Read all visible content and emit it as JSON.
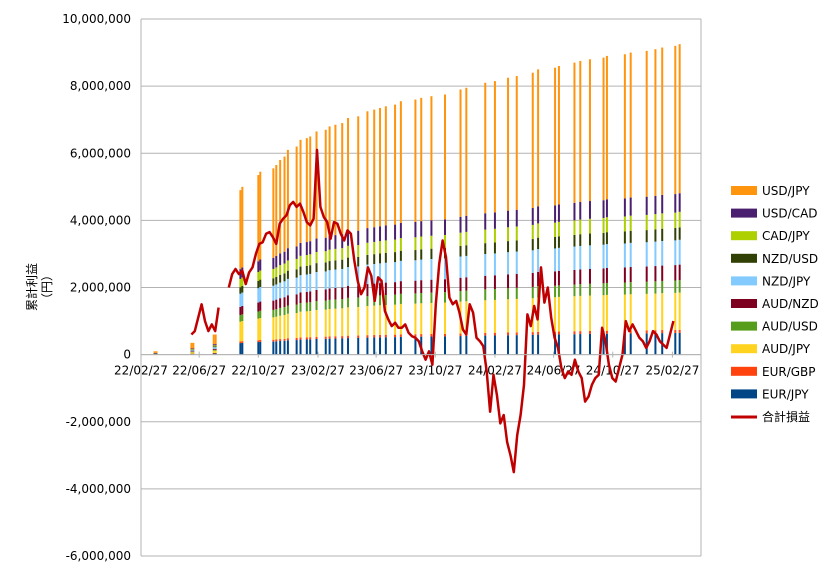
{
  "chart_data": {
    "type": "bar",
    "ylabel": "累計利益\n（円）",
    "ylim": [
      -6000000,
      10000000
    ],
    "y_ticks": [
      "10,000,000",
      "8,000,000",
      "6,000,000",
      "4,000,000",
      "2,000,000",
      "0",
      "-2,000,000",
      "-4,000,000",
      "-6,000,000"
    ],
    "y_tick_values": [
      10000000,
      8000000,
      6000000,
      4000000,
      2000000,
      0,
      -2000000,
      -4000000,
      -6000000
    ],
    "x_ticks": [
      "22/02/27",
      "22/06/27",
      "22/10/27",
      "23/02/27",
      "23/06/27",
      "23/10/27",
      "24/02/27",
      "24/06/27",
      "24/10/27",
      "25/02/27"
    ],
    "x_range": [
      "22/02/27",
      "25/04/27"
    ],
    "grid": "horizontal",
    "legend_position": "right",
    "stacked_series": [
      {
        "name": "USD/JPY",
        "color": "#FF950E"
      },
      {
        "name": "USD/CAD",
        "color": "#4B1F6F"
      },
      {
        "name": "CAD/JPY",
        "color": "#AECF00"
      },
      {
        "name": "NZD/USD",
        "color": "#314004"
      },
      {
        "name": "NZD/JPY",
        "color": "#83CAFF"
      },
      {
        "name": "AUD/NZD",
        "color": "#7E0021"
      },
      {
        "name": "AUD/USD",
        "color": "#579D1C"
      },
      {
        "name": "AUD/JPY",
        "color": "#FFD320"
      },
      {
        "name": "EUR/GBP",
        "color": "#FF420E"
      },
      {
        "name": "EUR/JPY",
        "color": "#004586"
      }
    ],
    "line_series": {
      "name": "合計損益",
      "color": "#C00000"
    },
    "bar_x": [
      "22/03/27",
      "22/03/31",
      "22/06/11",
      "22/06/15",
      "22/07/27",
      "22/07/31",
      "22/09/20",
      "22/09/24",
      "22/10/27",
      "22/10/31",
      "22/11/27",
      "22/12/03",
      "22/12/11",
      "22/12/20",
      "22/12/27",
      "23/01/14",
      "23/01/22",
      "23/02/04",
      "23/02/11",
      "23/02/24",
      "23/03/15",
      "23/03/23",
      "23/04/04",
      "23/04/18",
      "23/04/30",
      "23/05/21",
      "23/06/09",
      "23/06/23",
      "23/07/05",
      "23/07/17",
      "23/08/05",
      "23/08/17",
      "23/09/16",
      "23/09/28",
      "23/10/19",
      "23/11/16",
      "23/12/18",
      "23/12/30",
      "24/02/07",
      "24/02/27",
      "24/03/25",
      "24/04/12",
      "24/05/15",
      "24/05/26",
      "24/06/30",
      "24/07/08",
      "24/08/09",
      "24/08/21",
      "24/09/10",
      "24/10/08",
      "24/10/15",
      "24/11/21",
      "24/12/03",
      "25/01/05",
      "25/01/23",
      "25/02/06",
      "25/03/05",
      "25/03/14"
    ],
    "bar_totals": [
      0.1,
      0.1,
      0.35,
      0.35,
      0.6,
      0.6,
      4.9,
      5.0,
      5.35,
      5.45,
      5.55,
      5.65,
      5.8,
      5.9,
      6.1,
      6.2,
      6.4,
      6.45,
      6.5,
      6.65,
      6.7,
      6.8,
      6.85,
      6.9,
      7.05,
      7.1,
      7.25,
      7.3,
      7.35,
      7.4,
      7.45,
      7.55,
      7.6,
      7.65,
      7.7,
      7.75,
      7.9,
      7.95,
      8.1,
      8.15,
      8.25,
      8.3,
      8.4,
      8.5,
      8.55,
      8.6,
      8.7,
      8.75,
      8.8,
      8.85,
      8.9,
      8.95,
      9.0,
      9.05,
      9.1,
      9.15,
      9.2,
      9.25
    ],
    "line_x": [
      "22/06/11",
      "22/06/18",
      "22/06/25",
      "22/07/02",
      "22/07/09",
      "22/07/16",
      "22/07/23",
      "22/07/30",
      "22/08/06",
      "22/08/13",
      "22/08/20",
      "22/08/27",
      "22/09/03",
      "22/09/10",
      "22/09/17",
      "22/09/24",
      "22/10/01",
      "22/10/08",
      "22/10/15",
      "22/10/22",
      "22/10/29",
      "22/11/05",
      "22/11/12",
      "22/11/19",
      "22/11/26",
      "22/12/03",
      "22/12/10",
      "22/12/17",
      "22/12/24",
      "22/12/31",
      "23/01/07",
      "23/01/14",
      "23/01/21",
      "23/01/28",
      "23/02/04",
      "23/02/11",
      "23/02/18",
      "23/02/25",
      "23/03/04",
      "23/03/11",
      "23/03/18",
      "23/03/25",
      "23/04/01",
      "23/04/08",
      "23/04/15",
      "23/04/22",
      "23/04/29",
      "23/05/06",
      "23/05/13",
      "23/05/20",
      "23/05/27",
      "23/06/03",
      "23/06/10",
      "23/06/17",
      "23/06/24",
      "23/07/01",
      "23/07/08",
      "23/07/15",
      "23/07/22",
      "23/07/29",
      "23/08/05",
      "23/08/12",
      "23/08/19",
      "23/08/26",
      "23/09/02",
      "23/09/09",
      "23/09/16",
      "23/09/23",
      "23/09/30",
      "23/10/07",
      "23/10/14",
      "23/10/21",
      "23/10/28",
      "23/11/04",
      "23/11/11",
      "23/11/18",
      "23/11/25",
      "23/12/02",
      "23/12/09",
      "23/12/16",
      "23/12/23",
      "23/12/30",
      "24/01/06",
      "24/01/13",
      "24/01/20",
      "24/01/27",
      "24/02/03",
      "24/02/10",
      "24/02/17",
      "24/02/24",
      "24/03/02",
      "24/03/09",
      "24/03/16",
      "24/03/23",
      "24/03/30",
      "24/04/06",
      "24/04/13",
      "24/04/20",
      "24/04/27",
      "24/05/04",
      "24/05/11",
      "24/05/18",
      "24/05/25",
      "24/06/01",
      "24/06/08",
      "24/06/15",
      "24/06/22",
      "24/06/29",
      "24/07/06",
      "24/07/13",
      "24/07/20",
      "24/07/27",
      "24/08/03",
      "24/08/10",
      "24/08/17",
      "24/08/24",
      "24/08/31",
      "24/09/07",
      "24/09/14",
      "24/09/21",
      "24/09/28",
      "24/10/05",
      "24/10/12",
      "24/10/19",
      "24/10/26",
      "24/11/02",
      "24/11/09",
      "24/11/16",
      "24/11/23",
      "24/11/30",
      "24/12/07",
      "24/12/14",
      "24/12/21",
      "24/12/28",
      "25/01/04",
      "25/01/11",
      "25/01/18",
      "25/01/25",
      "25/02/01",
      "25/02/08",
      "25/02/15",
      "25/02/22",
      "25/03/01",
      "25/03/08",
      "25/03/15",
      "25/03/22",
      "25/03/29",
      "25/04/05",
      "25/04/12"
    ],
    "line_values": [
      600000,
      700000,
      1100000,
      1500000,
      1000000,
      700000,
      900000,
      700000,
      1400000,
      null,
      null,
      2000000,
      2400000,
      2550000,
      2400000,
      2500000,
      2100000,
      2450000,
      2600000,
      3000000,
      3300000,
      3350000,
      3600000,
      3650000,
      3500000,
      3300000,
      3900000,
      4050000,
      4150000,
      4450000,
      4550000,
      4400000,
      4500000,
      4250000,
      3950000,
      3850000,
      4050000,
      6100000,
      4400000,
      4100000,
      3950000,
      3450000,
      3950000,
      3900000,
      3600000,
      3400000,
      3700000,
      3600000,
      2800000,
      2200000,
      1800000,
      2000000,
      2600000,
      2350000,
      1600000,
      2300000,
      2200000,
      1300000,
      1050000,
      850000,
      950000,
      800000,
      800000,
      900000,
      650000,
      550000,
      500000,
      400000,
      100000,
      -150000,
      100000,
      -300000,
      1500000,
      2700000,
      3400000,
      2900000,
      1700000,
      1500000,
      1600000,
      1250000,
      750000,
      600000,
      1500000,
      1250000,
      500000,
      400000,
      250000,
      -500000,
      -1700000,
      -600000,
      -1200000,
      -2050000,
      -1800000,
      -2600000,
      -3000000,
      -3500000,
      -2400000,
      -1800000,
      -900000,
      1200000,
      850000,
      1450000,
      1050000,
      2600000,
      1550000,
      2000000,
      1100000,
      500000,
      200000,
      -400000,
      -700000,
      -500000,
      -600000,
      -150000,
      -500000,
      -700000,
      -1400000,
      -1250000,
      -900000,
      -700000,
      -600000,
      800000,
      400000,
      -300000,
      -700000,
      -800000,
      -400000,
      0,
      1000000,
      700000,
      900000,
      700000,
      500000,
      400000,
      200000,
      400000,
      700000,
      600000,
      400000,
      300000,
      200000,
      600000,
      1000000
    ]
  }
}
